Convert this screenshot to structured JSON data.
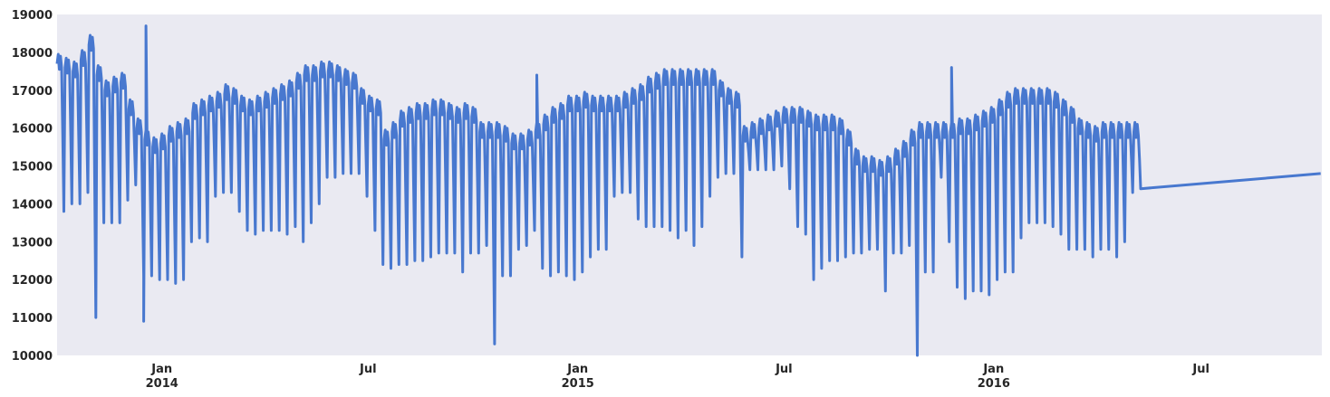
{
  "chart_data": {
    "type": "line",
    "title": "",
    "xlabel": "",
    "ylabel": "",
    "xlim": [
      "2013-10-01",
      "2016-10-15"
    ],
    "ylim": [
      10000,
      19000
    ],
    "grid": false,
    "colors": {
      "line": "#4878cf",
      "plot_bg": "#eaeaf2"
    },
    "yticks": [
      10000,
      11000,
      12000,
      13000,
      14000,
      15000,
      16000,
      17000,
      18000,
      19000
    ],
    "xticks": [
      {
        "date": "2014-01-01",
        "label": "Jan",
        "sublabel": "2014"
      },
      {
        "date": "2014-07-01",
        "label": "Jul",
        "sublabel": ""
      },
      {
        "date": "2015-01-01",
        "label": "Jan",
        "sublabel": "2015"
      },
      {
        "date": "2015-07-01",
        "label": "Jul",
        "sublabel": ""
      },
      {
        "date": "2016-01-01",
        "label": "Jan",
        "sublabel": "2016"
      },
      {
        "date": "2016-07-01",
        "label": "Jul",
        "sublabel": ""
      }
    ],
    "series": [
      {
        "name": "",
        "frequency": "weekly",
        "start": "2013-10-01",
        "weekday_level": [
          17700,
          17600,
          17500,
          17800,
          18200,
          17400,
          17000,
          17100,
          17200,
          16500,
          16000,
          15700,
          15500,
          15600,
          15800,
          15900,
          16000,
          16400,
          16500,
          16600,
          16700,
          16900,
          16800,
          16600,
          16500,
          16600,
          16700,
          16800,
          16900,
          17000,
          17200,
          17400,
          17400,
          17500,
          17500,
          17400,
          17300,
          17200,
          16800,
          16600,
          16500,
          15700,
          15900,
          16200,
          16300,
          16400,
          16400,
          16500,
          16500,
          16400,
          16300,
          16400,
          16300,
          15900,
          15900,
          15900,
          15800,
          15600,
          15600,
          15700,
          15900,
          16100,
          16300,
          16400,
          16600,
          16600,
          16700,
          16600,
          16600,
          16600,
          16600,
          16700,
          16800,
          16900,
          17100,
          17200,
          17300,
          17300,
          17300,
          17300,
          17300,
          17300,
          17300,
          17000,
          16800,
          16700,
          15800,
          15900,
          16000,
          16100,
          16200,
          16300,
          16300,
          16300,
          16200,
          16100,
          16100,
          16100,
          16000,
          15700,
          15200,
          15000,
          15000,
          14900,
          15000,
          15200,
          15400,
          15700,
          15900,
          15900,
          15900,
          15900,
          15900,
          16000,
          16000,
          16100,
          16200,
          16300,
          16500,
          16700,
          16800,
          16800,
          16800,
          16800,
          16800,
          16700,
          16500,
          16300,
          16000,
          15900,
          15800,
          15900,
          15900,
          15900,
          15900,
          15900
        ],
        "weekend_low": [
          13800,
          14000,
          14000,
          14300,
          11000,
          13500,
          13500,
          13500,
          14100,
          14500,
          12100,
          12100,
          12000,
          12000,
          11900,
          12000,
          13000,
          13100,
          13000,
          14200,
          14300,
          14300,
          13800,
          13300,
          13200,
          13300,
          13300,
          13300,
          13200,
          13400,
          13000,
          13500,
          14000,
          14700,
          14700,
          14800,
          14800,
          14800,
          14200,
          13300,
          12400,
          12300,
          12400,
          12400,
          12500,
          12500,
          12600,
          12700,
          12700,
          12700,
          12200,
          12700,
          12700,
          12900,
          10300,
          12100,
          12100,
          12800,
          12900,
          13300,
          12300,
          12100,
          12200,
          12100,
          12000,
          12200,
          12600,
          12800,
          12800,
          14200,
          14300,
          14300,
          13600,
          13400,
          13400,
          13400,
          13300,
          13100,
          13300,
          12900,
          13400,
          14200,
          14700,
          14800,
          14800,
          12600,
          14900,
          14900,
          14900,
          14900,
          15000,
          14400,
          13400,
          13200,
          12000,
          12300,
          12500,
          12500,
          12600,
          12700,
          12700,
          12800,
          12800,
          11700,
          12700,
          12700,
          12900,
          10000,
          12200,
          12200,
          14700,
          13000,
          11800,
          11500,
          11700,
          11700,
          11600,
          12000,
          12200,
          12200,
          13100,
          13500,
          13500,
          13500,
          13400,
          13200,
          12800,
          12800,
          12800,
          12600,
          12800,
          12800,
          12600,
          13000,
          14300,
          14400
        ],
        "spikes": [
          {
            "date": "2013-12-18",
            "value": 18700
          },
          {
            "date": "2013-12-16",
            "value": 10900
          },
          {
            "date": "2014-11-26",
            "value": 17400
          },
          {
            "date": "2015-11-25",
            "value": 17600
          }
        ],
        "end_value": 14800
      }
    ]
  }
}
